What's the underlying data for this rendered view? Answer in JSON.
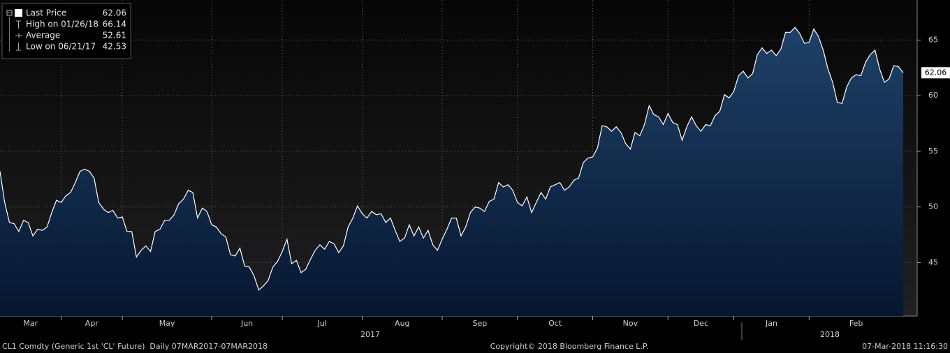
{
  "chart_data": {
    "type": "area",
    "categories": [
      "Mar",
      null,
      null,
      null,
      null,
      null,
      null,
      null,
      null,
      null,
      null,
      null,
      null,
      "Apr",
      null,
      null,
      null,
      null,
      null,
      null,
      null,
      null,
      null,
      null,
      null,
      null,
      "May",
      null,
      null,
      null,
      null,
      null,
      null,
      null,
      null,
      null,
      null,
      null,
      null,
      null,
      null,
      null,
      null,
      null,
      null,
      "Jun",
      null,
      null,
      null,
      null,
      null,
      null,
      null,
      null,
      null,
      null,
      null,
      null,
      null,
      null,
      "Jul",
      null,
      null,
      null,
      null,
      null,
      null,
      null,
      null,
      null,
      null,
      null,
      null,
      null,
      null,
      null,
      null,
      "Aug",
      null,
      null,
      null,
      null,
      null,
      null,
      null,
      null,
      null,
      null,
      null,
      null,
      null,
      null,
      null,
      null,
      "Sep",
      null,
      null,
      null,
      null,
      null,
      null,
      null,
      null,
      null,
      null,
      null,
      null,
      null,
      null,
      null,
      "Oct",
      null,
      null,
      null,
      null,
      null,
      null,
      null,
      null,
      null,
      null,
      null,
      null,
      null,
      null,
      null,
      "Nov",
      null,
      null,
      null,
      null,
      null,
      null,
      null,
      null,
      null,
      null,
      null,
      null,
      null,
      null,
      null,
      "Dec",
      null,
      null,
      null,
      null,
      null,
      null,
      null,
      null,
      null,
      null,
      null,
      null,
      null,
      "Jan",
      null,
      null,
      null,
      null,
      null,
      null,
      null,
      null,
      null,
      null,
      null,
      null,
      null,
      null,
      null,
      "Feb",
      null,
      null,
      null,
      null,
      null,
      null,
      null,
      null,
      null,
      null,
      null,
      null,
      null,
      null,
      null,
      null,
      null,
      null,
      null,
      null
    ],
    "values": [
      53.2,
      50.4,
      48.6,
      48.5,
      47.8,
      48.8,
      48.6,
      47.4,
      48.0,
      47.9,
      48.2,
      49.5,
      50.6,
      50.4,
      51.0,
      51.3,
      52.2,
      53.2,
      53.4,
      53.2,
      52.6,
      50.4,
      49.8,
      49.5,
      49.7,
      49.0,
      49.1,
      47.8,
      47.8,
      45.5,
      46.1,
      46.5,
      46.0,
      47.8,
      48.0,
      48.8,
      48.8,
      49.3,
      50.3,
      50.7,
      51.5,
      51.3,
      49.0,
      49.9,
      49.6,
      48.4,
      48.2,
      47.6,
      47.3,
      45.7,
      45.6,
      46.3,
      44.7,
      44.6,
      43.8,
      42.53,
      42.9,
      43.4,
      44.6,
      45.1,
      46.0,
      47.1,
      44.9,
      45.2,
      44.1,
      44.4,
      45.3,
      46.1,
      46.6,
      46.2,
      46.9,
      46.7,
      45.9,
      46.5,
      48.2,
      49.0,
      50.1,
      49.4,
      49.0,
      49.6,
      49.3,
      49.4,
      48.6,
      49.0,
      47.9,
      46.9,
      47.2,
      48.4,
      47.4,
      48.2,
      47.2,
      47.9,
      46.6,
      46.1,
      47.1,
      48.0,
      49.0,
      49.0,
      47.4,
      48.2,
      49.5,
      50.0,
      49.9,
      49.6,
      50.5,
      50.7,
      52.2,
      51.8,
      52.0,
      51.5,
      50.4,
      50.1,
      50.9,
      49.5,
      50.4,
      51.3,
      50.7,
      51.8,
      52.0,
      52.2,
      51.5,
      51.8,
      52.4,
      52.6,
      54.0,
      54.4,
      54.5,
      55.3,
      57.3,
      57.2,
      56.8,
      57.2,
      56.7,
      55.7,
      55.2,
      56.7,
      56.4,
      57.4,
      59.1,
      58.3,
      58.1,
      57.4,
      58.4,
      57.6,
      57.4,
      56.0,
      57.2,
      58.1,
      57.3,
      56.8,
      57.4,
      57.3,
      58.2,
      58.6,
      60.1,
      59.8,
      60.4,
      61.8,
      62.2,
      61.6,
      62.0,
      63.7,
      64.3,
      63.8,
      64.1,
      63.6,
      64.2,
      65.7,
      65.7,
      66.14,
      65.6,
      64.7,
      64.8,
      66.0,
      65.3,
      64.1,
      62.4,
      61.2,
      59.4,
      59.3,
      60.8,
      61.6,
      61.9,
      61.8,
      63.0,
      63.7,
      64.1,
      62.4,
      61.2,
      61.5,
      62.7,
      62.6,
      62.06
    ],
    "color": "#ffffff",
    "fill_color": "#14304f",
    "ylim": [
      40.2,
      68.6
    ],
    "yticks": [
      45,
      50,
      55,
      60,
      65
    ],
    "grid": true,
    "years": [
      "2017",
      "2018"
    ],
    "legend": [
      {
        "label": "Last Price",
        "value": 62.06
      },
      {
        "label": "High on 01/26/18",
        "value": 66.14
      },
      {
        "label": "Average",
        "value": 52.61
      },
      {
        "label": "Low on 06/21/17",
        "value": 42.53
      }
    ],
    "footer": {
      "left": "CL1 Comdty (Generic 1st 'CL' Future)  Daily 07MAR2017-07MAR2018",
      "center": "Copyright© 2018 Bloomberg Finance L.P.",
      "right": "07-Mar-2018 11:16:30"
    }
  }
}
